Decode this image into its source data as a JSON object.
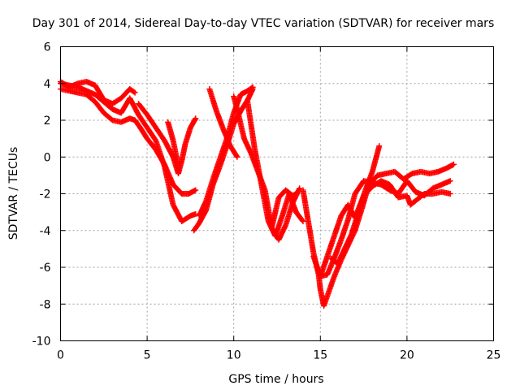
{
  "chart_data": {
    "type": "scatter",
    "title": "Day 301 of 2014, Sidereal Day-to-day VTEC variation (SDTVAR) for receiver mars",
    "xlabel": "GPS time / hours",
    "ylabel": "SDTVAR / TECUs",
    "xlim": [
      0,
      25
    ],
    "ylim": [
      -10,
      6
    ],
    "xticks": [
      "0",
      "5",
      "10",
      "15",
      "20",
      "25"
    ],
    "yticks": [
      "-10",
      "-8",
      "-6",
      "-4",
      "-2",
      "0",
      "2",
      "4",
      "6"
    ],
    "grid": true,
    "marker": "plus",
    "color": "#ff0000",
    "tracks": [
      {
        "x": [
          0.0,
          0.5,
          1.0,
          1.5,
          2.0,
          2.5,
          3.0,
          3.5,
          4.0,
          4.3,
          4.6,
          5.0,
          5.5,
          6.0,
          6.5,
          7.0,
          7.4,
          7.8
        ],
        "y": [
          3.7,
          3.6,
          3.5,
          3.4,
          3.0,
          2.4,
          2.0,
          1.9,
          2.1,
          2.0,
          1.6,
          1.0,
          0.4,
          -0.4,
          -1.5,
          -2.0,
          -2.0,
          -1.8
        ]
      },
      {
        "x": [
          0.0,
          0.5,
          1.0,
          1.5,
          2.0,
          2.5,
          3.0,
          3.5,
          4.0,
          4.5,
          5.0,
          5.5,
          6.0,
          6.5,
          7.0,
          7.5,
          7.8
        ],
        "y": [
          4.0,
          3.9,
          3.8,
          3.6,
          3.4,
          3.0,
          2.6,
          2.4,
          3.2,
          2.3,
          1.6,
          0.9,
          -0.5,
          -2.6,
          -3.5,
          -3.2,
          -3.1
        ]
      },
      {
        "x": [
          0.0,
          0.5,
          1.0,
          1.5,
          2.0,
          2.5,
          3.0,
          3.5,
          4.0,
          4.3
        ],
        "y": [
          4.1,
          3.8,
          4.0,
          4.1,
          3.9,
          3.1,
          2.9,
          3.2,
          3.7,
          3.5
        ]
      },
      {
        "x": [
          4.5,
          5.0,
          5.5,
          6.0,
          6.5,
          6.8,
          7.0,
          7.2,
          7.5,
          7.8
        ],
        "y": [
          2.9,
          2.3,
          1.6,
          0.9,
          0.0,
          -0.9,
          -0.2,
          0.7,
          1.6,
          2.1
        ]
      },
      {
        "x": [
          6.2,
          6.5,
          6.8
        ],
        "y": [
          1.9,
          0.9,
          -0.5
        ]
      },
      {
        "x": [
          7.7,
          8.0,
          8.4,
          8.8,
          9.2,
          9.6,
          10.0,
          10.4,
          10.8,
          11.1
        ],
        "y": [
          -4.0,
          -3.6,
          -2.9,
          -1.5,
          -0.5,
          0.6,
          1.8,
          2.5,
          3.1,
          3.7
        ]
      },
      {
        "x": [
          8.0,
          8.4,
          8.8,
          9.2,
          9.6,
          10.0,
          10.4,
          10.8,
          11.1
        ],
        "y": [
          -3.2,
          -2.4,
          -1.2,
          -0.1,
          1.0,
          2.4,
          3.4,
          3.6,
          3.8
        ]
      },
      {
        "x": [
          8.6,
          9.0,
          9.4,
          9.8,
          10.2
        ],
        "y": [
          3.7,
          2.5,
          1.5,
          0.6,
          0.0
        ]
      },
      {
        "x": [
          10.0,
          10.3,
          10.6,
          11.0,
          11.4,
          11.8,
          12.2,
          12.6,
          13.0,
          13.4,
          13.8
        ],
        "y": [
          3.3,
          2.2,
          1.0,
          0.2,
          -0.8,
          -1.8,
          -3.9,
          -4.5,
          -3.7,
          -2.5,
          -1.7
        ]
      },
      {
        "x": [
          10.8,
          11.2,
          11.6,
          12.0,
          12.4,
          12.8,
          13.2,
          13.6,
          14.0
        ],
        "y": [
          3.0,
          0.5,
          -1.5,
          -3.5,
          -4.3,
          -3.2,
          -2.0,
          -3.0,
          -3.5
        ]
      },
      {
        "x": [
          12.2,
          12.6,
          13.0,
          13.4,
          13.6
        ],
        "y": [
          -3.8,
          -2.2,
          -1.8,
          -2.1,
          -2.0
        ]
      },
      {
        "x": [
          14.0,
          14.3,
          14.6,
          14.9,
          15.0,
          15.2,
          15.5,
          15.8,
          16.2,
          16.6,
          17.0,
          17.4,
          17.8,
          18.3,
          18.8,
          19.3,
          19.8,
          20.3,
          20.8,
          21.3,
          21.8,
          22.3,
          22.7
        ],
        "y": [
          -1.8,
          -3.5,
          -5.2,
          -6.4,
          -7.2,
          -8.1,
          -7.3,
          -6.5,
          -5.6,
          -4.8,
          -4.0,
          -2.8,
          -1.5,
          -1.0,
          -0.9,
          -0.8,
          -1.2,
          -0.9,
          -0.8,
          -0.9,
          -0.8,
          -0.6,
          -0.4
        ]
      },
      {
        "x": [
          14.6,
          15.0,
          15.4,
          15.8,
          16.2,
          16.6,
          17.0,
          17.5,
          18.0,
          18.5,
          19.0,
          19.5,
          20.0,
          20.5,
          21.0,
          21.5,
          22.0,
          22.5
        ],
        "y": [
          -5.4,
          -6.5,
          -6.4,
          -5.5,
          -4.5,
          -3.4,
          -2.0,
          -1.3,
          -1.4,
          -1.5,
          -1.8,
          -2.0,
          -1.3,
          -1.9,
          -2.1,
          -1.7,
          -1.5,
          -1.3
        ]
      },
      {
        "x": [
          15.0,
          15.4,
          15.8,
          16.2,
          16.6,
          17.0,
          17.5,
          18.0,
          18.5,
          19.0,
          19.5,
          20.0,
          20.2,
          20.6,
          21.0,
          21.5,
          22.0,
          22.5
        ],
        "y": [
          -6.5,
          -5.4,
          -4.3,
          -3.2,
          -2.6,
          -3.3,
          -2.1,
          -1.6,
          -1.3,
          -1.5,
          -2.2,
          -2.1,
          -2.6,
          -2.3,
          -2.0,
          -2.0,
          -1.9,
          -2.0
        ]
      },
      {
        "x": [
          15.6,
          16.0,
          16.4,
          16.8,
          17.2,
          17.6,
          18.0,
          18.4
        ],
        "y": [
          -5.5,
          -5.8,
          -5.0,
          -4.2,
          -3.0,
          -1.8,
          -0.8,
          0.6
        ]
      }
    ]
  }
}
